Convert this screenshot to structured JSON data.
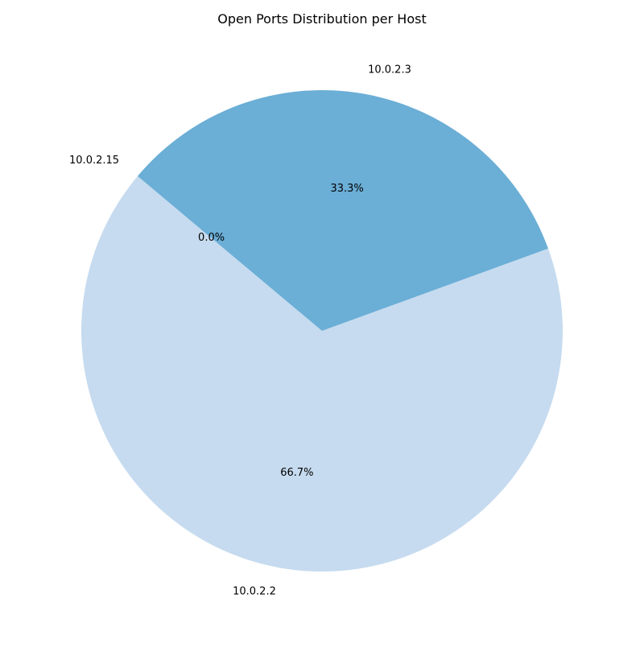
{
  "chart_data": {
    "type": "pie",
    "title": "Open Ports Distribution per Host",
    "labels": [
      "10.0.2.15",
      "10.0.2.2",
      "10.0.2.3"
    ],
    "values": [
      0,
      2,
      1
    ],
    "percent_labels": [
      "0.0%",
      "66.7%",
      "33.3%"
    ],
    "colors": [
      "#08519c",
      "#c6dbef",
      "#6baed6"
    ],
    "start_angle_deg": 140,
    "direction": "counterclockwise",
    "legend": "none"
  }
}
